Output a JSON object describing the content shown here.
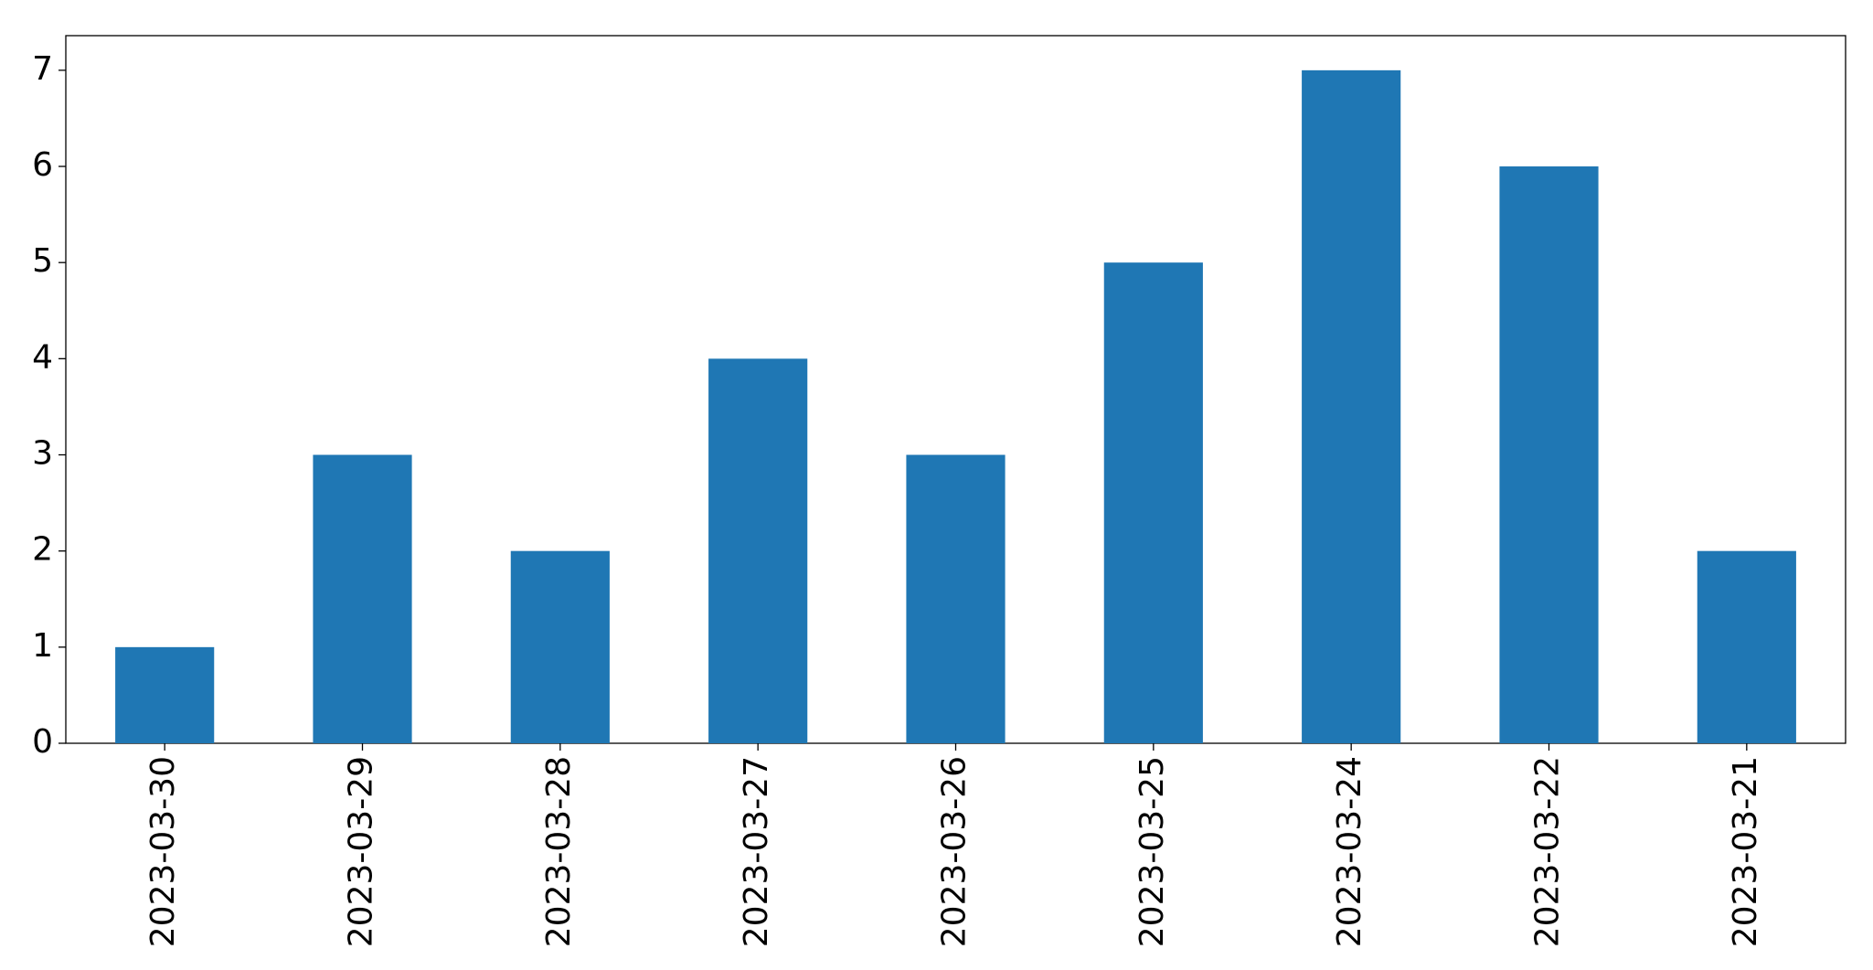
{
  "chart_data": {
    "type": "bar",
    "categories": [
      "2023-03-30",
      "2023-03-29",
      "2023-03-28",
      "2023-03-27",
      "2023-03-26",
      "2023-03-25",
      "2023-03-24",
      "2023-03-22",
      "2023-03-21"
    ],
    "values": [
      1,
      3,
      2,
      4,
      3,
      5,
      7,
      6,
      2
    ],
    "color": "#1f77b4",
    "ylim": [
      0,
      7.36
    ],
    "yticks": [
      0,
      1,
      2,
      3,
      4,
      5,
      6,
      7
    ],
    "grid": false
  }
}
